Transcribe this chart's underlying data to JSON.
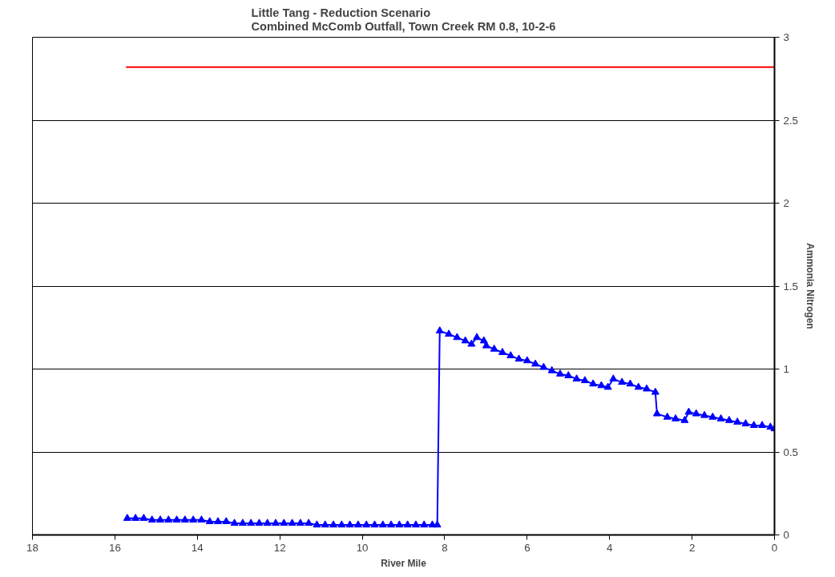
{
  "chart_data": {
    "type": "line",
    "title": "Little Tang - Reduction Scenario\nCombined McComb Outfall, Town Creek RM 0.8, 10-2-6",
    "xlabel": "River Mile",
    "ylabel": "Ammonia Nitrogen",
    "xlim": [
      18,
      0
    ],
    "xticks": [
      18,
      16,
      14,
      12,
      10,
      8,
      6,
      4,
      2,
      0
    ],
    "ylim": [
      0,
      3
    ],
    "yticks": [
      0,
      0.5,
      1,
      1.5,
      2,
      2.5,
      3
    ],
    "grid": "y",
    "line_style": "solid",
    "series": [
      {
        "color": "#ff0000",
        "marker": "none",
        "x": [
          15.73,
          0
        ],
        "values": [
          2.82,
          2.82
        ]
      },
      {
        "color": "#0000ff",
        "marker": "triangle",
        "x": [
          15.7,
          15.5,
          15.3,
          15.1,
          14.9,
          14.7,
          14.5,
          14.3,
          14.1,
          13.9,
          13.7,
          13.5,
          13.3,
          13.1,
          12.9,
          12.7,
          12.5,
          12.3,
          12.1,
          11.9,
          11.7,
          11.5,
          11.3,
          11.1,
          10.9,
          10.7,
          10.5,
          10.3,
          10.1,
          9.9,
          9.7,
          9.5,
          9.3,
          9.1,
          8.9,
          8.7,
          8.5,
          8.3,
          8.18,
          8.12,
          7.9,
          7.7,
          7.5,
          7.35,
          7.22,
          7.05,
          6.99,
          6.8,
          6.6,
          6.4,
          6.2,
          6.0,
          5.8,
          5.6,
          5.4,
          5.2,
          5.0,
          4.8,
          4.6,
          4.4,
          4.2,
          4.04,
          3.91,
          3.7,
          3.5,
          3.3,
          3.1,
          2.89,
          2.85,
          2.6,
          2.4,
          2.18,
          2.08,
          1.9,
          1.7,
          1.5,
          1.3,
          1.1,
          0.9,
          0.7,
          0.5,
          0.3,
          0.1,
          0
        ],
        "values": [
          0.1,
          0.1,
          0.1,
          0.09,
          0.09,
          0.09,
          0.09,
          0.09,
          0.09,
          0.09,
          0.08,
          0.08,
          0.08,
          0.07,
          0.07,
          0.07,
          0.07,
          0.07,
          0.07,
          0.07,
          0.07,
          0.07,
          0.07,
          0.06,
          0.06,
          0.06,
          0.06,
          0.06,
          0.06,
          0.06,
          0.06,
          0.06,
          0.06,
          0.06,
          0.06,
          0.06,
          0.06,
          0.06,
          0.06,
          1.23,
          1.21,
          1.19,
          1.17,
          1.15,
          1.19,
          1.17,
          1.14,
          1.12,
          1.1,
          1.08,
          1.06,
          1.05,
          1.03,
          1.01,
          0.99,
          0.97,
          0.96,
          0.94,
          0.93,
          0.91,
          0.9,
          0.89,
          0.94,
          0.92,
          0.91,
          0.89,
          0.88,
          0.86,
          0.73,
          0.71,
          0.7,
          0.69,
          0.74,
          0.73,
          0.72,
          0.71,
          0.7,
          0.69,
          0.68,
          0.67,
          0.66,
          0.66,
          0.65,
          0.64
        ]
      }
    ]
  }
}
